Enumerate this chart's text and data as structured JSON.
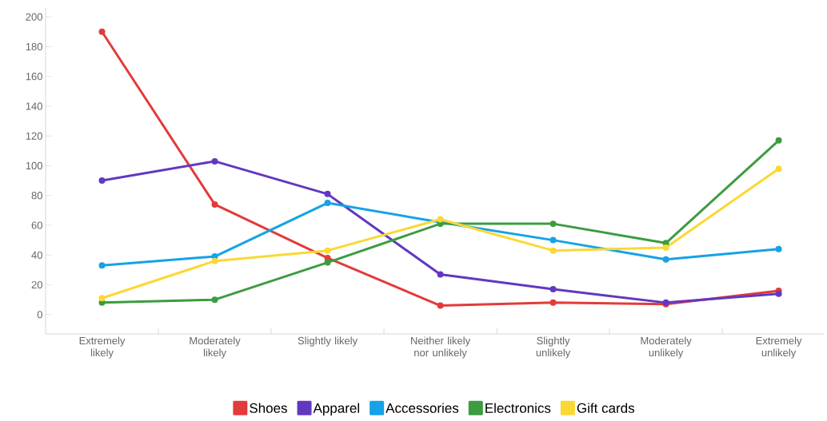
{
  "chart_data": {
    "type": "line",
    "categories": [
      "Extremely likely",
      "Moderately likely",
      "Slightly likely",
      "Neither likely nor unlikely",
      "Slightly unlikely",
      "Moderately unlikely",
      "Extremely unlikely"
    ],
    "ylim": [
      -13,
      206
    ],
    "yticks": [
      0,
      20,
      40,
      60,
      80,
      100,
      120,
      140,
      160,
      180,
      200
    ],
    "legend": "bottom",
    "marker": "circle",
    "line_style": "solid",
    "series": [
      {
        "name": "Shoes",
        "color": "#e23b3b",
        "values": [
          190,
          74,
          38,
          6,
          8,
          7,
          16
        ]
      },
      {
        "name": "Apparel",
        "color": "#6238c0",
        "values": [
          90,
          103,
          81,
          27,
          17,
          8,
          14
        ]
      },
      {
        "name": "Accessories",
        "color": "#16a2e6",
        "values": [
          33,
          39,
          75,
          62,
          50,
          37,
          44
        ]
      },
      {
        "name": "Electronics",
        "color": "#3c9c40",
        "values": [
          8,
          10,
          35,
          61,
          61,
          48,
          117
        ]
      },
      {
        "name": "Gift cards",
        "color": "#fbd834",
        "values": [
          11,
          36,
          43,
          64,
          43,
          45,
          98
        ]
      }
    ]
  }
}
